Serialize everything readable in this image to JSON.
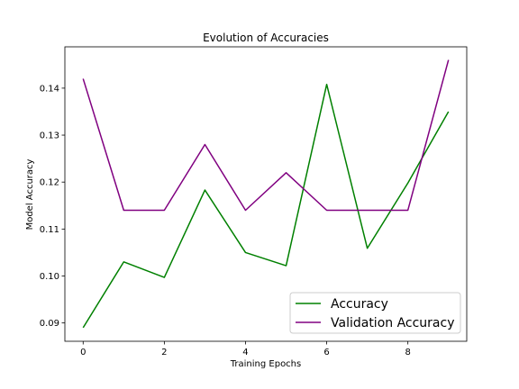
{
  "chart_data": {
    "type": "line",
    "title": "Evolution of Accuracies",
    "xlabel": "Training Epochs",
    "ylabel": "Model Accuracy",
    "x": [
      0,
      1,
      2,
      3,
      4,
      5,
      6,
      7,
      8,
      9
    ],
    "xlim": [
      -0.45,
      9.45
    ],
    "ylim": [
      0.0861,
      0.1488
    ],
    "xticks": [
      0,
      2,
      4,
      6,
      8
    ],
    "yticks": [
      0.09,
      0.1,
      0.11,
      0.12,
      0.13,
      0.14
    ],
    "ytick_labels": [
      "0.09",
      "0.10",
      "0.11",
      "0.12",
      "0.13",
      "0.14"
    ],
    "grid": false,
    "legend_position": "lower-right",
    "series": [
      {
        "name": "Accuracy",
        "color": "#008000",
        "values": [
          0.089,
          0.103,
          0.0997,
          0.1183,
          0.105,
          0.1022,
          0.1408,
          0.1059,
          0.1198,
          0.135
        ]
      },
      {
        "name": "Validation Accuracy",
        "color": "#800080",
        "values": [
          0.142,
          0.114,
          0.114,
          0.128,
          0.114,
          0.122,
          0.114,
          0.114,
          0.114,
          0.146
        ]
      }
    ]
  }
}
